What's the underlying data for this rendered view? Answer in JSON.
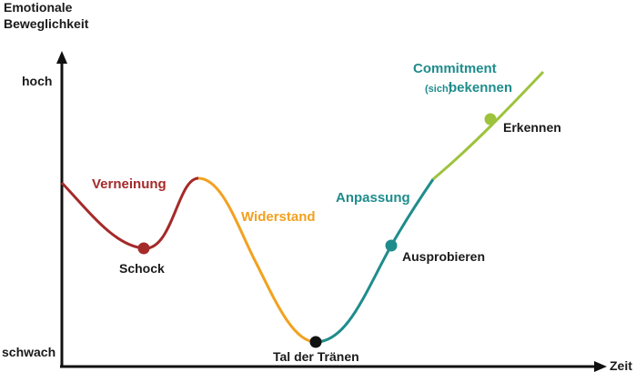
{
  "axes": {
    "y_title_line1": "Emotionale",
    "y_title_line2": "Beweglichkeit",
    "y_high": "hoch",
    "y_low": "schwach",
    "x_label": "Zeit"
  },
  "phases": [
    {
      "name": "verneinung",
      "label": "Verneinung",
      "color": "#a52a2a"
    },
    {
      "name": "widerstand",
      "label": "Widerstand",
      "color": "#f2a11f"
    },
    {
      "name": "anpassung",
      "label": "Anpassung",
      "color": "#1f8c8c"
    },
    {
      "name": "commitment",
      "label_line1": "Commitment",
      "label_line2_small": "(sich)",
      "label_line2": "bekennen",
      "color": "#1f8c8c"
    }
  ],
  "milestones": [
    {
      "name": "schock",
      "label": "Schock",
      "color": "#a52a2a"
    },
    {
      "name": "tal-der-traenen",
      "label": "Tal der Tränen",
      "color": "#111111"
    },
    {
      "name": "ausprobieren",
      "label": "Ausprobieren",
      "color": "#1f8c8c"
    },
    {
      "name": "erkennen",
      "label": "Erkennen",
      "color": "#9cc33b"
    }
  ],
  "colors": {
    "axis": "#111111",
    "segment_red": "#a52a2a",
    "segment_orange": "#f2a11f",
    "segment_teal": "#1f8c8c",
    "segment_green": "#9cc33b"
  }
}
